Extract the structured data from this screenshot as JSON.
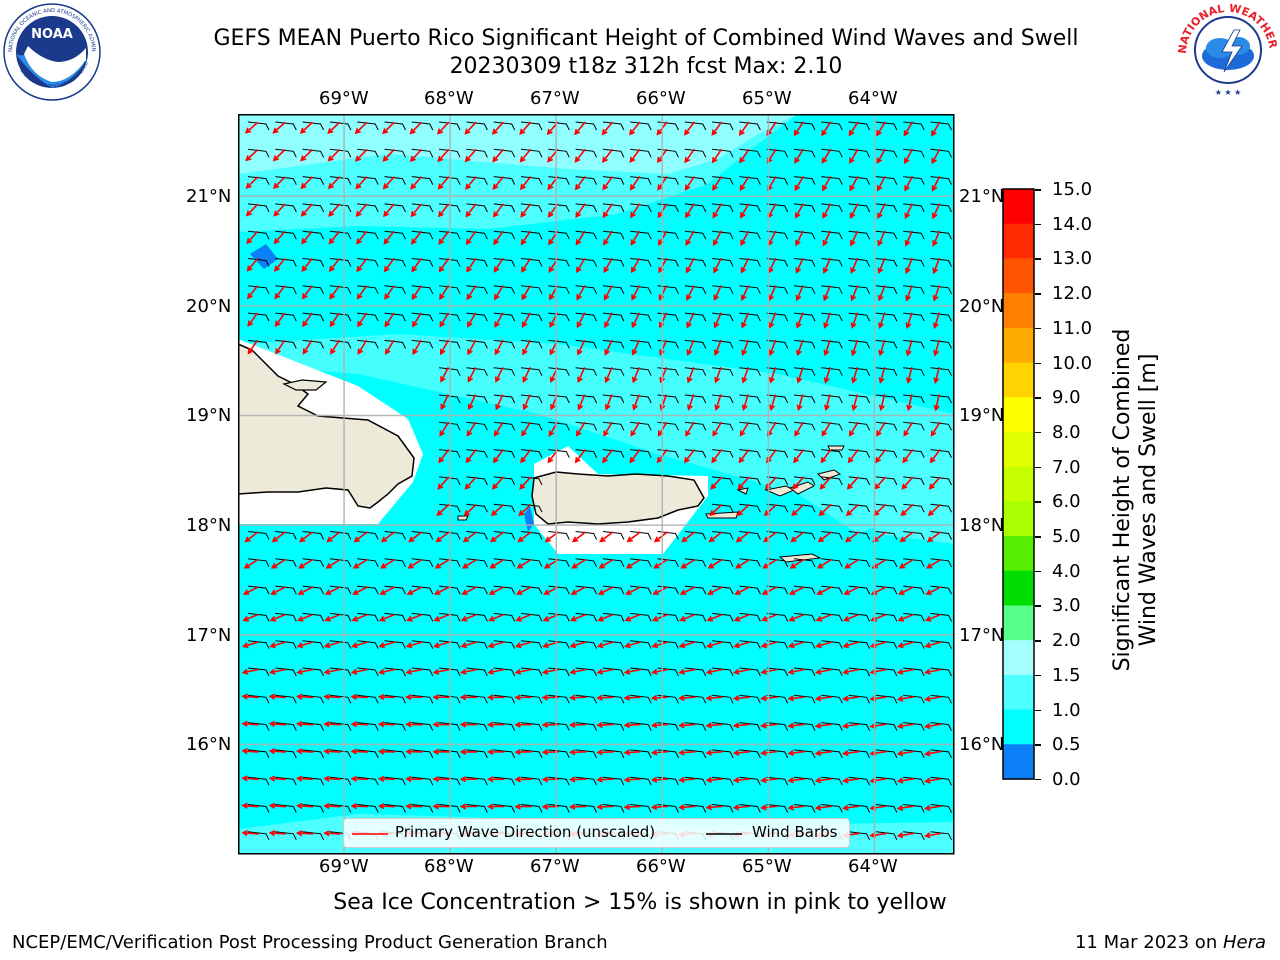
{
  "title": {
    "line1": "GEFS MEAN Puerto Rico Significant Height of Combined Wind Waves and Swell",
    "line2": "20230309 t18z 312h fcst   Max: 2.10"
  },
  "logos": {
    "left": {
      "name": "NOAA",
      "ring_text": "NATIONAL OCEANIC AND ATMOSPHERIC ADMINISTRATION",
      "bottom_text": "U.S. DEPARTMENT OF COMMERCE"
    },
    "right": {
      "ring_text": "NATIONAL WEATHER SERVICE"
    }
  },
  "map": {
    "lon_ticks": [
      "69°W",
      "68°W",
      "67°W",
      "66°W",
      "65°W",
      "64°W"
    ],
    "lat_ticks": [
      "21°N",
      "20°N",
      "19°N",
      "18°N",
      "17°N",
      "16°N"
    ],
    "extent": {
      "lon_min": -70.0,
      "lon_max": -63.25,
      "lat_min": 15.0,
      "lat_max": 21.75
    },
    "gridlines": true,
    "colors": {
      "land": "#eeead9",
      "sea_1_1_5": "#00ffff",
      "sea_1_5_2": "#4dffff",
      "sea_2_3": "#a6ffff",
      "sea_0_5_1": "#0d7ff7",
      "arrow": "#ff0000",
      "barb": "#000000"
    }
  },
  "legend": {
    "items": [
      {
        "label": "Primary Wave Direction (unscaled)",
        "color": "#ff0000"
      },
      {
        "label": "Wind Barbs",
        "color": "#000000"
      }
    ],
    "placement": "bottom-center"
  },
  "colorbar": {
    "label_line1": "Significant Height of Combined",
    "label_line2": "Wind Waves and Swell [m]",
    "ticks": [
      "15.0",
      "14.0",
      "13.0",
      "12.0",
      "11.0",
      "10.0",
      "9.0",
      "8.0",
      "7.0",
      "6.0",
      "5.0",
      "4.0",
      "3.0",
      "2.0",
      "1.5",
      "1.0",
      "0.5",
      "0.0"
    ],
    "colors_top_to_bottom": [
      "#ff0000",
      "#ff2a00",
      "#ff5500",
      "#ff7f00",
      "#ffaa00",
      "#ffd400",
      "#ffff00",
      "#e2ff00",
      "#c6ff00",
      "#aaff00",
      "#55ee00",
      "#00dd00",
      "#55ff88",
      "#a6ffff",
      "#4dffff",
      "#00ffff",
      "#0d7ff7",
      "#0000ff"
    ]
  },
  "caption": "Sea Ice Concentration > 15% is shown in pink to yellow",
  "footer": {
    "left": "NCEP/EMC/Verification Post Processing Product Generation Branch",
    "right_prefix": "11 Mar 2023 on ",
    "right_machine": "Hera"
  }
}
